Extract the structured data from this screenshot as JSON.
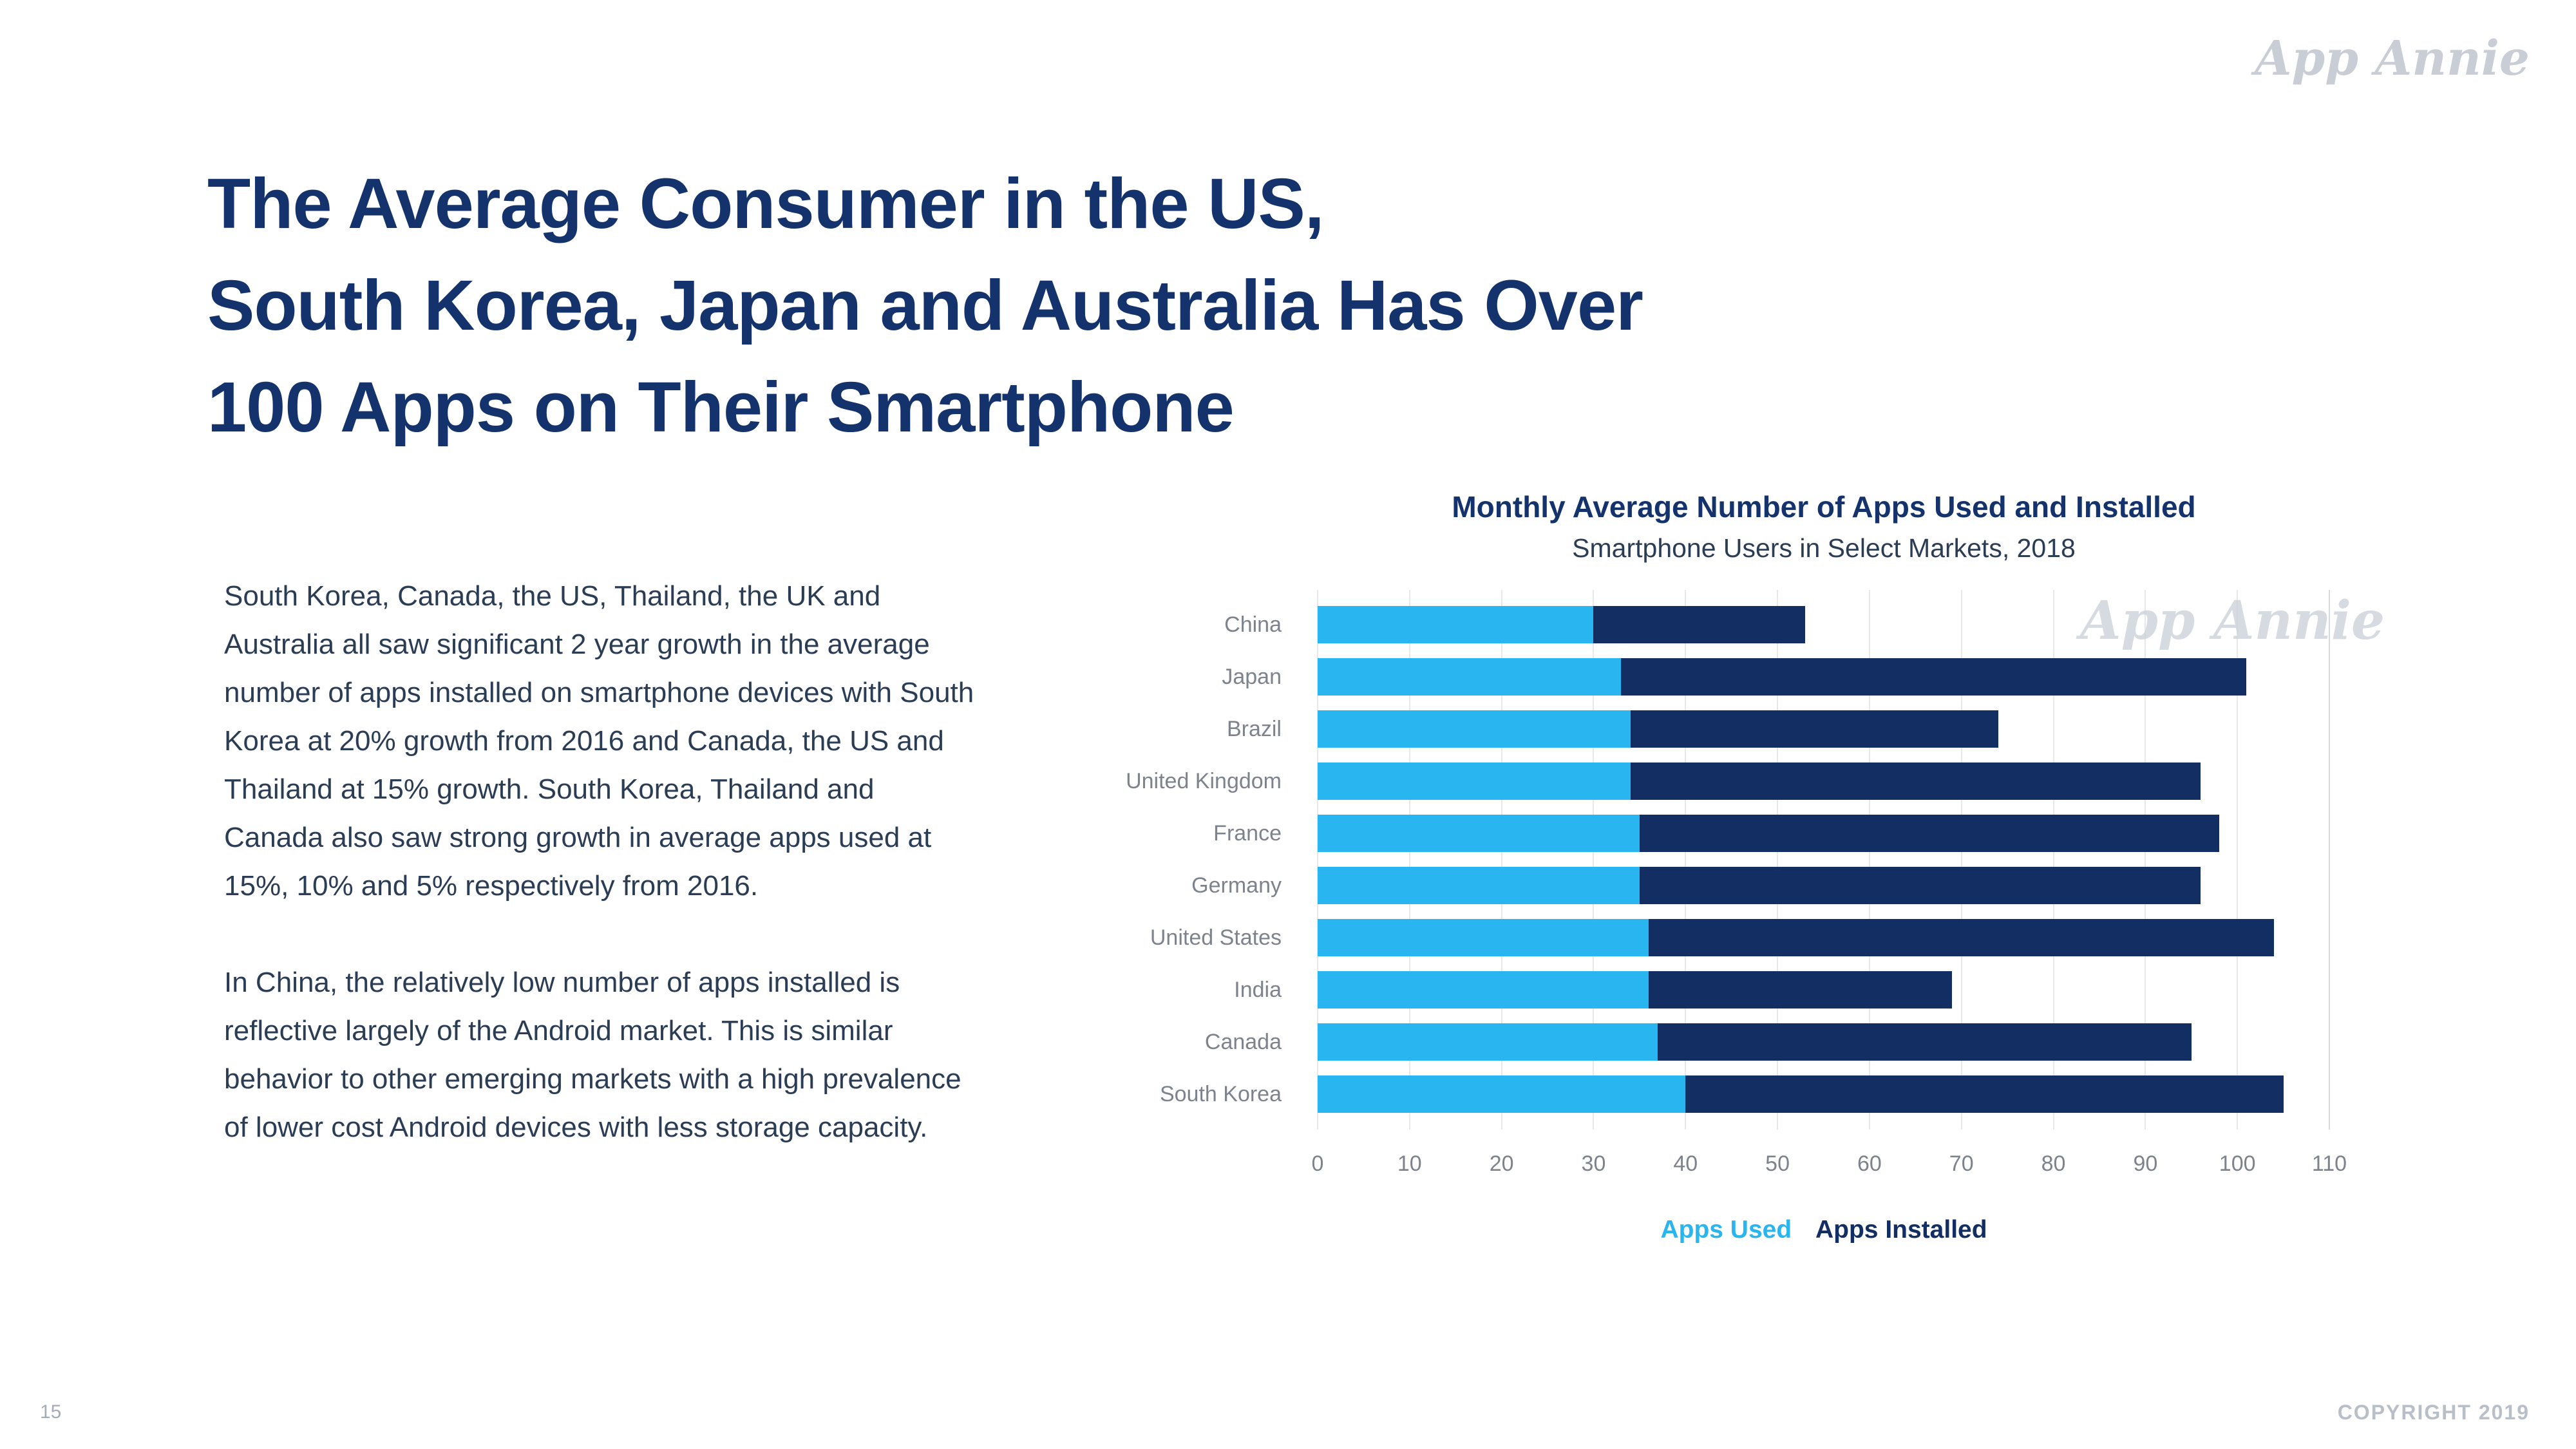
{
  "logo": {
    "text": "App Annie"
  },
  "slide": {
    "title_lines": [
      "The Average Consumer in the US,",
      "South Korea, Japan and Australia Has Over",
      "100 Apps on Their Smartphone"
    ],
    "body_paragraphs": [
      "South Korea, Canada, the US, Thailand, the UK and Australia all saw significant 2 year growth in the average number of apps installed on smartphone devices with South Korea at 20% growth from 2016 and Canada, the US and Thailand at 15% growth. South Korea, Thailand and Canada also saw strong growth in average apps used at 15%, 10% and 5% respectively from 2016.",
      "In China, the relatively low number of apps installed is reflective largely of the Android market. This is similar behavior to other emerging markets with a high prevalence of lower cost Android devices with less storage capacity."
    ],
    "page_number": "15",
    "copyright": "COPYRIGHT 2019"
  },
  "chart_data": {
    "type": "bar",
    "orientation": "horizontal",
    "title": "Monthly Average Number of Apps Used and Installed",
    "subtitle": "Smartphone Users in Select Markets, 2018",
    "categories": [
      "China",
      "Japan",
      "Brazil",
      "United Kingdom",
      "France",
      "Germany",
      "United States",
      "India",
      "Canada",
      "South Korea"
    ],
    "series": [
      {
        "name": "Apps Used",
        "color": "#29b5f0",
        "values": [
          30,
          33,
          34,
          34,
          35,
          35,
          36,
          36,
          37,
          40
        ]
      },
      {
        "name": "Apps Installed",
        "color": "#132e63",
        "values": [
          53,
          101,
          74,
          96,
          98,
          96,
          104,
          69,
          95,
          105
        ]
      }
    ],
    "series_note": "Apps Installed values are bar totals; Apps Used segment overlays from 0",
    "xlim": [
      0,
      110
    ],
    "xticks": [
      0,
      10,
      20,
      30,
      40,
      50,
      60,
      70,
      80,
      90,
      100,
      110
    ],
    "grid": "vertical",
    "legend": [
      {
        "label": "Apps Used",
        "color": "#29b5f0"
      },
      {
        "label": "Apps Installed",
        "color": "#132e63"
      }
    ],
    "legend_position": "bottom-center",
    "watermark": "App Annie"
  }
}
